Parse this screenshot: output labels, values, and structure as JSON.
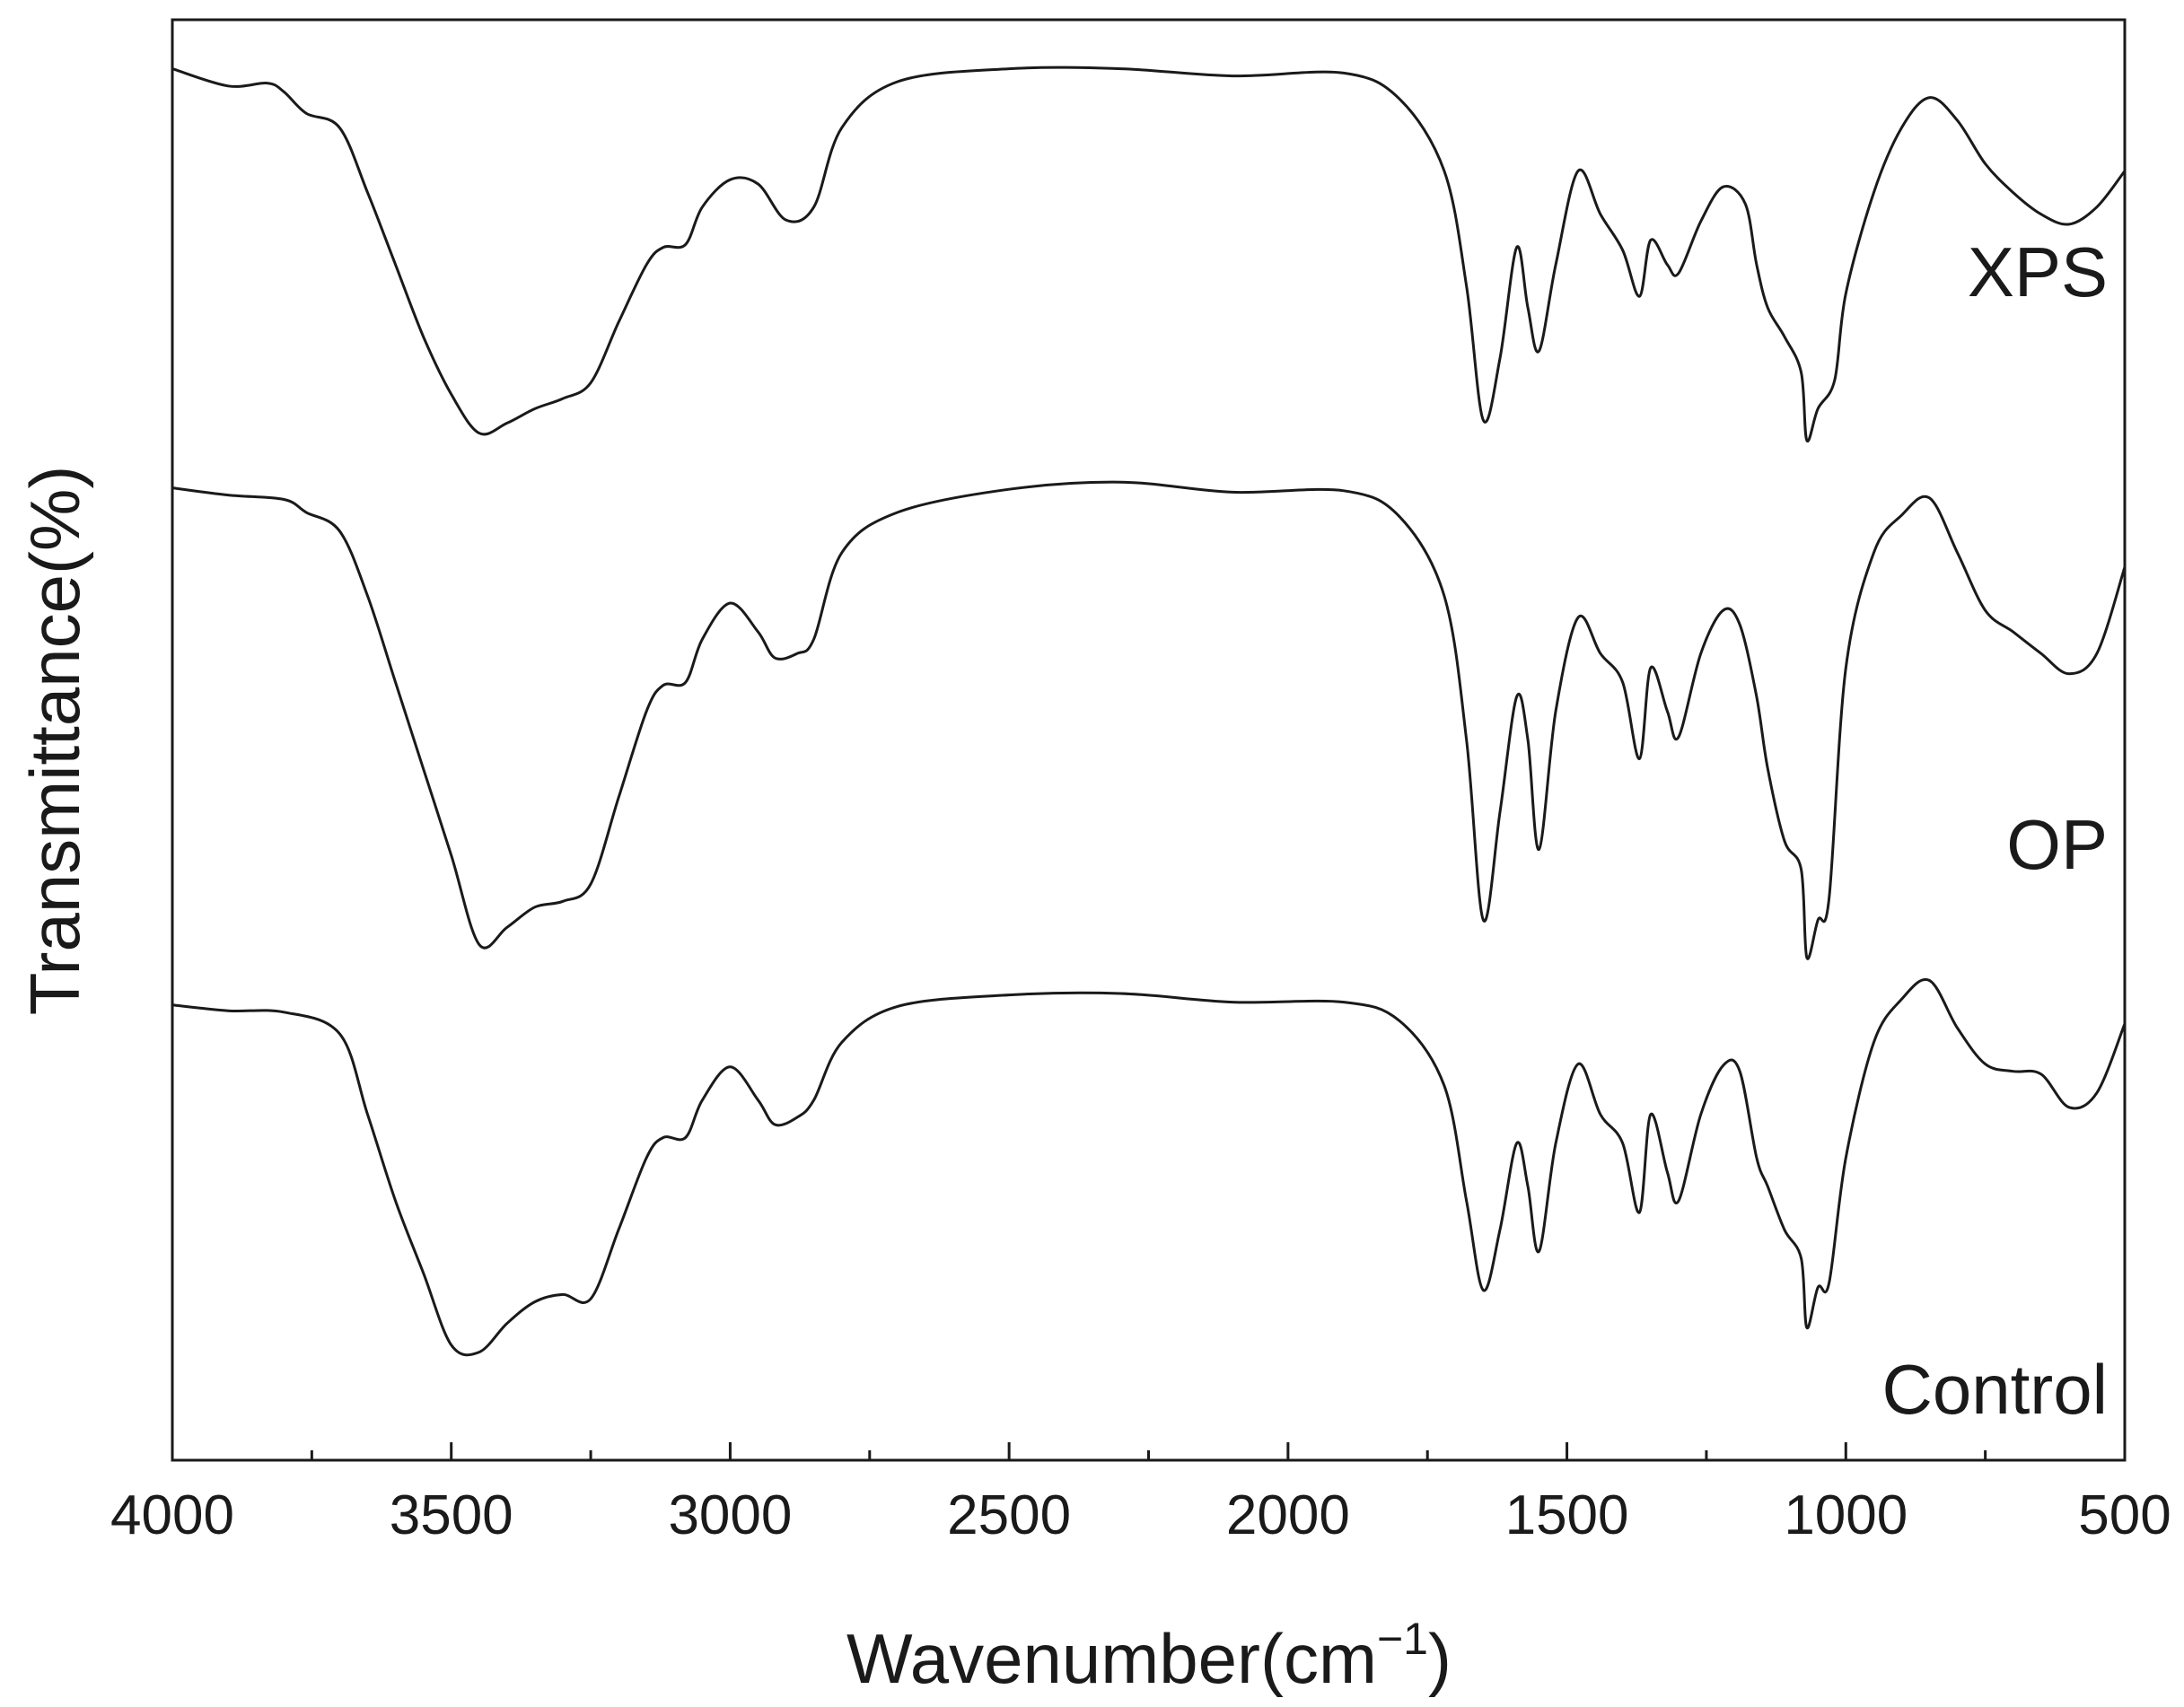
{
  "chart_data": {
    "type": "line",
    "title": "",
    "xlabel": "Wavenumber(cm",
    "xlabel_superscript": "−1",
    "xlabel_close": ")",
    "ylabel": "Transmittance(%)",
    "xlim": [
      4000,
      500
    ],
    "x_reversed": true,
    "y_tick_labels_shown": false,
    "grid": false,
    "x_ticks": [
      4000,
      3500,
      3000,
      2500,
      2000,
      1500,
      1000,
      500
    ],
    "x_tick_labels": [
      "4000",
      "3500",
      "3000",
      "2500",
      "2000",
      "1500",
      "1000",
      "500"
    ],
    "ylim": [
      0,
      100
    ],
    "series": [
      {
        "name": "XPS",
        "points": [
          [
            4000,
            96.6
          ],
          [
            3900,
            95.4
          ],
          [
            3830,
            95.6
          ],
          [
            3800,
            95.0
          ],
          [
            3760,
            93.5
          ],
          [
            3700,
            92.5
          ],
          [
            3650,
            88
          ],
          [
            3600,
            83
          ],
          [
            3550,
            78
          ],
          [
            3500,
            74
          ],
          [
            3450,
            71.3
          ],
          [
            3400,
            72
          ],
          [
            3350,
            73
          ],
          [
            3300,
            73.7
          ],
          [
            3250,
            74.8
          ],
          [
            3200,
            79
          ],
          [
            3150,
            83
          ],
          [
            3120,
            84.2
          ],
          [
            3080,
            84.4
          ],
          [
            3050,
            87
          ],
          [
            3000,
            88.9
          ],
          [
            2950,
            88.6
          ],
          [
            2900,
            86.1
          ],
          [
            2850,
            87
          ],
          [
            2800,
            92.5
          ],
          [
            2700,
            95.7
          ],
          [
            2500,
            96.6
          ],
          [
            2300,
            96.6
          ],
          [
            2100,
            96.1
          ],
          [
            1900,
            96.3
          ],
          [
            1800,
            94.5
          ],
          [
            1720,
            89.5
          ],
          [
            1680,
            81.5
          ],
          [
            1650,
            72.2
          ],
          [
            1620,
            76.5
          ],
          [
            1590,
            84.2
          ],
          [
            1570,
            80
          ],
          [
            1550,
            77
          ],
          [
            1520,
            83
          ],
          [
            1480,
            89.5
          ],
          [
            1440,
            86.5
          ],
          [
            1400,
            84
          ],
          [
            1370,
            80.8
          ],
          [
            1350,
            84.7
          ],
          [
            1320,
            83
          ],
          [
            1300,
            82.4
          ],
          [
            1260,
            86
          ],
          [
            1220,
            88.4
          ],
          [
            1180,
            87.2
          ],
          [
            1160,
            83
          ],
          [
            1140,
            80
          ],
          [
            1110,
            78
          ],
          [
            1080,
            75.5
          ],
          [
            1070,
            70.8
          ],
          [
            1050,
            73
          ],
          [
            1020,
            75
          ],
          [
            1000,
            81
          ],
          [
            950,
            88
          ],
          [
            900,
            92.5
          ],
          [
            850,
            94.6
          ],
          [
            800,
            93
          ],
          [
            750,
            90
          ],
          [
            700,
            88
          ],
          [
            650,
            86.5
          ],
          [
            600,
            85.8
          ],
          [
            550,
            87
          ],
          [
            500,
            89.5
          ]
        ]
      },
      {
        "name": "OP",
        "points": [
          [
            4000,
            67.5
          ],
          [
            3900,
            67
          ],
          [
            3800,
            66.7
          ],
          [
            3760,
            65.8
          ],
          [
            3700,
            64.5
          ],
          [
            3650,
            60
          ],
          [
            3600,
            54
          ],
          [
            3550,
            48
          ],
          [
            3500,
            42
          ],
          [
            3450,
            35.8
          ],
          [
            3400,
            37
          ],
          [
            3350,
            38.4
          ],
          [
            3300,
            38.8
          ],
          [
            3250,
            40
          ],
          [
            3200,
            46
          ],
          [
            3150,
            52
          ],
          [
            3120,
            53.8
          ],
          [
            3080,
            54
          ],
          [
            3050,
            57
          ],
          [
            3000,
            59.5
          ],
          [
            2950,
            57.5
          ],
          [
            2920,
            55.7
          ],
          [
            2880,
            56
          ],
          [
            2850,
            57
          ],
          [
            2800,
            63
          ],
          [
            2700,
            65.8
          ],
          [
            2500,
            67.4
          ],
          [
            2300,
            67.9
          ],
          [
            2100,
            67.2
          ],
          [
            1900,
            67.3
          ],
          [
            1800,
            65.5
          ],
          [
            1720,
            60
          ],
          [
            1680,
            50
          ],
          [
            1650,
            37.5
          ],
          [
            1620,
            45
          ],
          [
            1590,
            53
          ],
          [
            1570,
            50
          ],
          [
            1550,
            42.4
          ],
          [
            1520,
            52
          ],
          [
            1480,
            58.5
          ],
          [
            1440,
            56
          ],
          [
            1400,
            54
          ],
          [
            1370,
            48.7
          ],
          [
            1350,
            55
          ],
          [
            1320,
            52
          ],
          [
            1300,
            50.2
          ],
          [
            1260,
            56
          ],
          [
            1220,
            59
          ],
          [
            1190,
            58
          ],
          [
            1160,
            53
          ],
          [
            1140,
            48
          ],
          [
            1110,
            43
          ],
          [
            1080,
            41
          ],
          [
            1070,
            34.9
          ],
          [
            1050,
            37.5
          ],
          [
            1030,
            39
          ],
          [
            1000,
            55
          ],
          [
            950,
            63
          ],
          [
            900,
            65.6
          ],
          [
            850,
            66.8
          ],
          [
            800,
            63
          ],
          [
            750,
            59
          ],
          [
            700,
            57.5
          ],
          [
            650,
            56
          ],
          [
            600,
            54.6
          ],
          [
            550,
            56
          ],
          [
            500,
            62
          ]
        ]
      },
      {
        "name": "Control",
        "points": [
          [
            4000,
            31.6
          ],
          [
            3900,
            31.2
          ],
          [
            3800,
            31.1
          ],
          [
            3700,
            29.6
          ],
          [
            3650,
            24
          ],
          [
            3600,
            18
          ],
          [
            3550,
            13
          ],
          [
            3500,
            8
          ],
          [
            3450,
            7.5
          ],
          [
            3400,
            9.5
          ],
          [
            3350,
            11
          ],
          [
            3300,
            11.5
          ],
          [
            3250,
            11.2
          ],
          [
            3200,
            16
          ],
          [
            3150,
            21
          ],
          [
            3120,
            22.4
          ],
          [
            3080,
            22.4
          ],
          [
            3050,
            25
          ],
          [
            3000,
            27.3
          ],
          [
            2950,
            25
          ],
          [
            2920,
            23.3
          ],
          [
            2880,
            23.8
          ],
          [
            2850,
            25
          ],
          [
            2800,
            29
          ],
          [
            2700,
            31.5
          ],
          [
            2500,
            32.3
          ],
          [
            2300,
            32.4
          ],
          [
            2100,
            31.8
          ],
          [
            1900,
            31.8
          ],
          [
            1800,
            30.5
          ],
          [
            1720,
            26
          ],
          [
            1680,
            18
          ],
          [
            1650,
            11.8
          ],
          [
            1620,
            16
          ],
          [
            1590,
            22
          ],
          [
            1570,
            19
          ],
          [
            1550,
            14.5
          ],
          [
            1520,
            22
          ],
          [
            1480,
            27.5
          ],
          [
            1440,
            24
          ],
          [
            1400,
            22
          ],
          [
            1370,
            17.2
          ],
          [
            1350,
            24
          ],
          [
            1320,
            20
          ],
          [
            1300,
            18
          ],
          [
            1260,
            24
          ],
          [
            1220,
            27.4
          ],
          [
            1190,
            27
          ],
          [
            1160,
            21
          ],
          [
            1140,
            19
          ],
          [
            1110,
            16
          ],
          [
            1080,
            14
          ],
          [
            1070,
            9.2
          ],
          [
            1050,
            12
          ],
          [
            1030,
            12.3
          ],
          [
            1000,
            21
          ],
          [
            950,
            29
          ],
          [
            900,
            32
          ],
          [
            850,
            33.3
          ],
          [
            800,
            30
          ],
          [
            750,
            27.5
          ],
          [
            700,
            27
          ],
          [
            650,
            26.8
          ],
          [
            600,
            24.5
          ],
          [
            550,
            25.5
          ],
          [
            500,
            30.3
          ]
        ]
      }
    ]
  }
}
